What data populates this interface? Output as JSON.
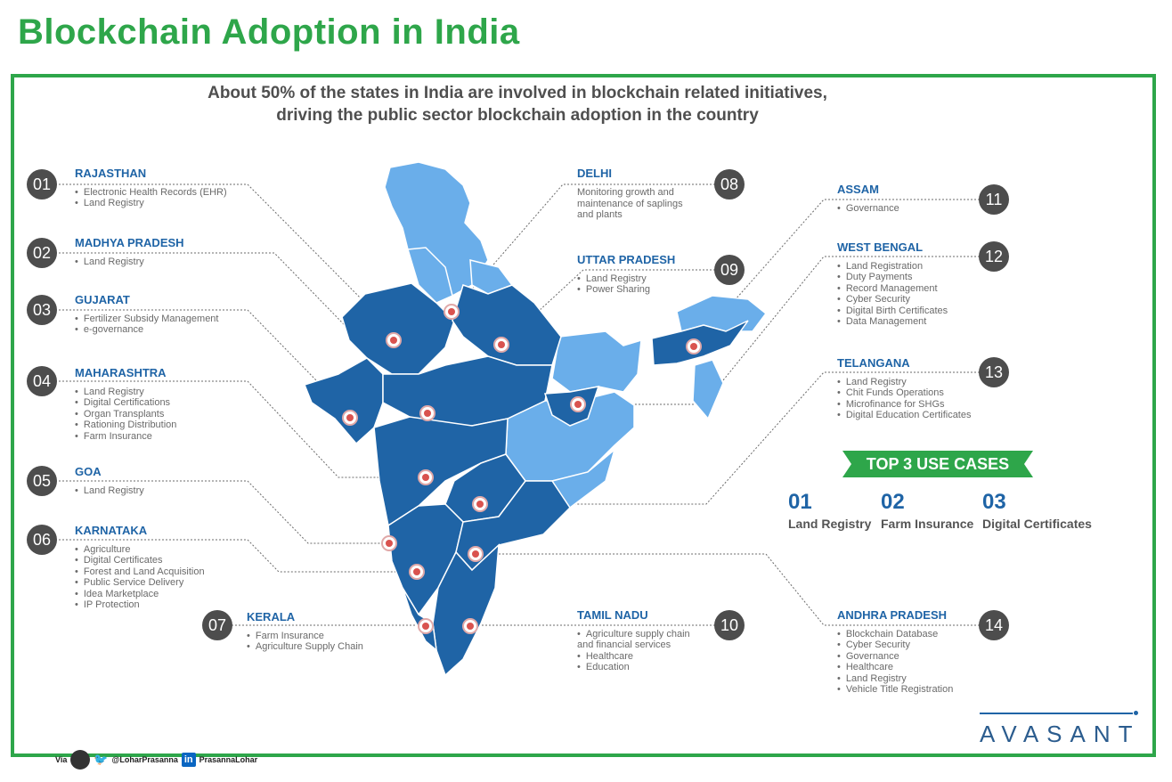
{
  "title": "Blockchain Adoption in India",
  "subtitle": {
    "line1": "About 50% of the states in India are involved in blockchain related initiatives,",
    "line2": "driving the public sector blockchain adoption in the country"
  },
  "states": [
    {
      "num": "01",
      "name": "RAJASTHAN",
      "items": [
        "Electronic Health Records (EHR)",
        "Land Registry"
      ]
    },
    {
      "num": "02",
      "name": "MADHYA PRADESH",
      "items": [
        "Land Registry"
      ]
    },
    {
      "num": "03",
      "name": "GUJARAT",
      "items": [
        "Fertilizer Subsidy Management",
        "e-governance"
      ]
    },
    {
      "num": "04",
      "name": "MAHARASHTRA",
      "items": [
        "Land Registry",
        "Digital Certifications",
        "Organ Transplants",
        "Rationing Distribution",
        "Farm Insurance"
      ]
    },
    {
      "num": "05",
      "name": "GOA",
      "items": [
        "Land Registry"
      ]
    },
    {
      "num": "06",
      "name": "KARNATAKA",
      "items": [
        "Agriculture",
        "Digital Certificates",
        "Forest and Land Acquisition",
        "Public Service Delivery",
        "Idea Marketplace",
        "IP Protection"
      ]
    },
    {
      "num": "07",
      "name": "KERALA",
      "items": [
        "Farm Insurance",
        "Agriculture Supply Chain"
      ]
    },
    {
      "num": "08",
      "name": "DELHI",
      "description": "Monitoring growth and\nmaintenance of saplings\nand plants"
    },
    {
      "num": "09",
      "name": "UTTAR PRADESH",
      "items": [
        "Land Registry",
        "Power Sharing"
      ]
    },
    {
      "num": "10",
      "name": "TAMIL NADU",
      "items": [
        "Agriculture supply chain\nand financial services",
        "Healthcare",
        "Education"
      ]
    },
    {
      "num": "11",
      "name": "ASSAM",
      "items": [
        "Governance"
      ]
    },
    {
      "num": "12",
      "name": "WEST BENGAL",
      "items": [
        "Land Registration",
        "Duty Payments",
        "Record Management",
        "Cyber Security",
        "Digital Birth Certificates",
        "Data Management"
      ]
    },
    {
      "num": "13",
      "name": "TELANGANA",
      "items": [
        "Land Registry",
        "Chit Funds Operations",
        "Microfinance for SHGs",
        "Digital Education Certificates"
      ]
    },
    {
      "num": "14",
      "name": "ANDHRA PRADESH",
      "items": [
        "Blockchain Database",
        "Cyber Security",
        "Governance",
        "Healthcare",
        "Land Registry",
        "Vehicle Title Registration"
      ]
    }
  ],
  "top_use_cases": {
    "heading": "TOP 3 USE CASES",
    "items": [
      {
        "num": "01",
        "label": "Land Registry"
      },
      {
        "num": "02",
        "label": "Farm Insurance"
      },
      {
        "num": "03",
        "label": "Digital Certificates"
      }
    ]
  },
  "logo": "AVASANT",
  "footer": {
    "via": "Via",
    "twitter": "@LoharPrasanna",
    "linkedin_badge": "in",
    "linkedin": "PrasannaLohar"
  },
  "colors": {
    "title_green": "#2ea64a",
    "adopting_state": "#1f64a6",
    "other_state": "#6aaeea",
    "badge": "#4d4d4d"
  }
}
